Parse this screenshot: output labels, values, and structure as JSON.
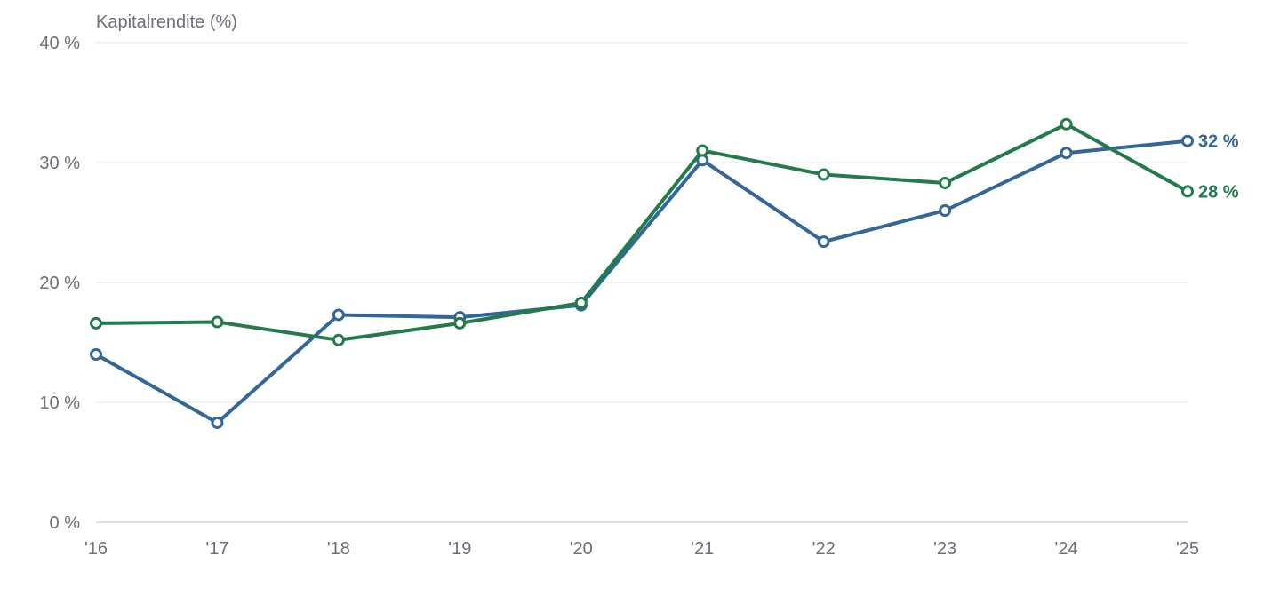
{
  "chart_data": {
    "type": "line",
    "ylabel": "Kapitalrendite (%)",
    "categories": [
      "'16",
      "'17",
      "'18",
      "'19",
      "'20",
      "'21",
      "'22",
      "'23",
      "'24",
      "'25"
    ],
    "ylim": [
      0,
      40
    ],
    "yticks": [
      0,
      10,
      20,
      30,
      40
    ],
    "ytick_labels": [
      "0 %",
      "10 %",
      "20 %",
      "30 %",
      "40 %"
    ],
    "grid": true,
    "legend": "none",
    "series": [
      {
        "color": "#336699",
        "values": [
          14.0,
          8.3,
          17.3,
          17.1,
          18.1,
          30.2,
          23.4,
          26.0,
          30.8,
          31.8
        ],
        "end_label": "32 %"
      },
      {
        "color": "#237a4a",
        "values": [
          16.6,
          16.7,
          15.2,
          16.6,
          18.3,
          31.0,
          29.0,
          28.3,
          33.2,
          27.6
        ],
        "end_label": "28 %"
      }
    ]
  }
}
